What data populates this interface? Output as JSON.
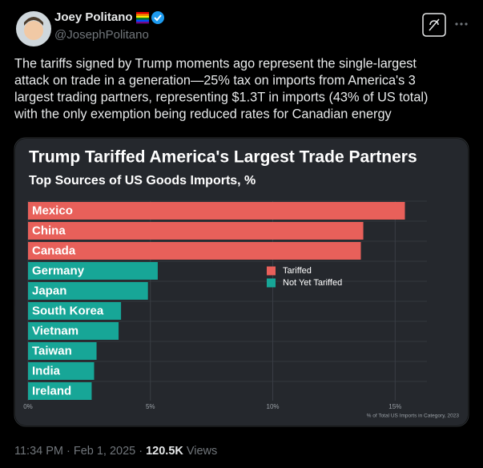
{
  "author": {
    "name": "Joey Politano",
    "handle": "@JosephPolitano"
  },
  "tweet": {
    "text_lines": [
      "The tariffs signed by Trump moments ago represent the single-largest",
      "attack on trade in a generation—25% tax on imports from America's 3",
      "largest trading partners, representing $1.3T in imports (43% of US total)",
      "with the only exemption being reduced rates for Canadian energy"
    ]
  },
  "footer": {
    "time": "11:34 PM",
    "separator": "·",
    "date": "Feb 1, 2025",
    "views_count": "120.5K",
    "views_label": "Views"
  },
  "chart_data": {
    "type": "bar",
    "orientation": "horizontal",
    "title": "Trump Tariffed America's Largest Trade Partners",
    "subtitle": "Top Sources of US Goods Imports, %",
    "categories": [
      "Mexico",
      "China",
      "Canada",
      "Germany",
      "Japan",
      "South Korea",
      "Vietnam",
      "Taiwan",
      "India",
      "Ireland"
    ],
    "series": [
      {
        "name": "Tariffed",
        "color": "#e8605a",
        "values": [
          15.4,
          13.7,
          13.6,
          null,
          null,
          null,
          null,
          null,
          null,
          null
        ]
      },
      {
        "name": "Not Yet Tariffed",
        "color": "#17a697",
        "values": [
          null,
          null,
          null,
          5.3,
          4.9,
          3.8,
          3.7,
          2.8,
          2.7,
          2.6
        ]
      }
    ],
    "xlim": [
      0,
      16.3
    ],
    "xticks": [
      {
        "value": 0,
        "label": "0%"
      },
      {
        "value": 5,
        "label": "5%"
      },
      {
        "value": 10,
        "label": "10%"
      },
      {
        "value": 15,
        "label": "15%"
      }
    ],
    "grid": true,
    "note": "% of Total US Imports in Category, 2023"
  }
}
